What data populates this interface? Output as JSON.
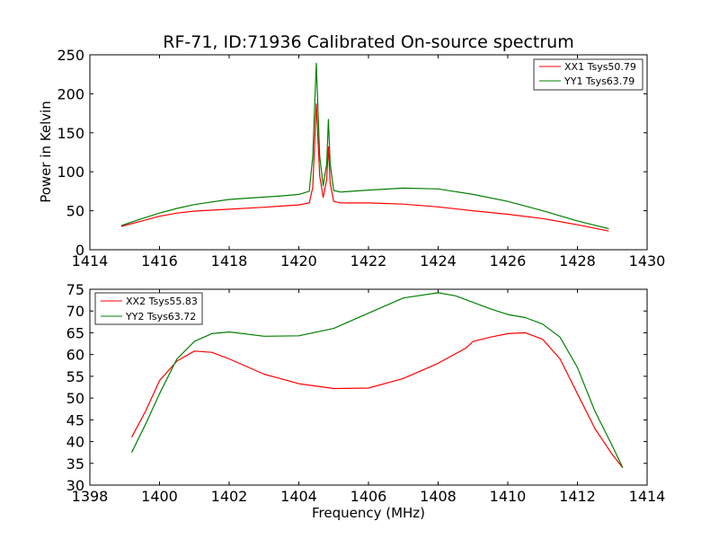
{
  "chart_data": [
    {
      "type": "line",
      "title": "RF-71, ID:71936 Calibrated On-source spectrum",
      "xlabel": "",
      "ylabel": "Power in Kelvin",
      "xlim": [
        1414,
        1430
      ],
      "ylim": [
        0,
        250
      ],
      "xticks": [
        1414,
        1416,
        1418,
        1420,
        1422,
        1424,
        1426,
        1428,
        1430
      ],
      "yticks": [
        0,
        50,
        100,
        150,
        200,
        250
      ],
      "legend_position": "top-right",
      "series": [
        {
          "name": "XX1 Tsys50.79",
          "color": "#ff0000",
          "x": [
            1414.9,
            1415.5,
            1416,
            1416.5,
            1417,
            1418,
            1419,
            1419.5,
            1420,
            1420.3,
            1420.4,
            1420.5,
            1420.6,
            1420.7,
            1420.8,
            1420.85,
            1420.9,
            1421,
            1421.2,
            1422,
            1423,
            1424,
            1425,
            1426,
            1427,
            1428,
            1428.9
          ],
          "values": [
            30,
            37,
            43,
            47,
            49.5,
            52,
            54.5,
            56,
            57.5,
            60,
            80,
            187,
            95,
            67,
            90,
            132,
            85,
            62,
            60,
            60,
            58.5,
            55,
            50,
            45.5,
            40,
            32,
            24
          ]
        },
        {
          "name": "YY1 Tsys63.79",
          "color": "#008000",
          "x": [
            1414.9,
            1415.5,
            1416,
            1416.5,
            1417,
            1418,
            1419,
            1419.5,
            1420,
            1420.3,
            1420.4,
            1420.5,
            1420.6,
            1420.7,
            1420.8,
            1420.85,
            1420.9,
            1421,
            1421.2,
            1422,
            1423,
            1424,
            1425,
            1426,
            1427,
            1428,
            1428.9
          ],
          "values": [
            31,
            40,
            47,
            53,
            58,
            64.5,
            67.5,
            69,
            71,
            75,
            120,
            239,
            120,
            82,
            110,
            167,
            110,
            76,
            74,
            76.5,
            79,
            78,
            71,
            62,
            50,
            37,
            27
          ]
        }
      ]
    },
    {
      "type": "line",
      "title": "",
      "xlabel": "Frequency (MHz)",
      "ylabel": "",
      "xlim": [
        1398,
        1414
      ],
      "ylim": [
        30,
        75
      ],
      "xticks": [
        1398,
        1400,
        1402,
        1404,
        1406,
        1408,
        1410,
        1412,
        1414
      ],
      "yticks": [
        30,
        35,
        40,
        45,
        50,
        55,
        60,
        65,
        70,
        75
      ],
      "legend_position": "top-left",
      "series": [
        {
          "name": "XX2 Tsys55.83",
          "color": "#ff0000",
          "x": [
            1399.2,
            1399.6,
            1400,
            1400.5,
            1401,
            1401.5,
            1402,
            1403,
            1404,
            1405,
            1406,
            1407,
            1408,
            1408.8,
            1409,
            1409.5,
            1410,
            1410.5,
            1411,
            1411.5,
            1412,
            1412.5,
            1413,
            1413.3
          ],
          "values": [
            41,
            47,
            54,
            58.5,
            60.8,
            60.5,
            59,
            55.5,
            53.3,
            52.2,
            52.3,
            54.5,
            58,
            61.5,
            63,
            64,
            64.8,
            65,
            63.5,
            59,
            51,
            43,
            37,
            34
          ]
        },
        {
          "name": "YY2 Tsys63.72",
          "color": "#008000",
          "x": [
            1399.2,
            1399.6,
            1400,
            1400.5,
            1401,
            1401.5,
            1402,
            1403,
            1404,
            1405,
            1406,
            1407,
            1408,
            1408.5,
            1409,
            1409.5,
            1410,
            1410.5,
            1411,
            1411.5,
            1412,
            1412.5,
            1413,
            1413.3
          ],
          "values": [
            37.5,
            44,
            51,
            59,
            63,
            64.8,
            65.2,
            64.2,
            64.3,
            66,
            69.5,
            73,
            74.2,
            73.5,
            72,
            70.5,
            69.2,
            68.5,
            67,
            64,
            57,
            47,
            39,
            34
          ]
        }
      ]
    }
  ]
}
